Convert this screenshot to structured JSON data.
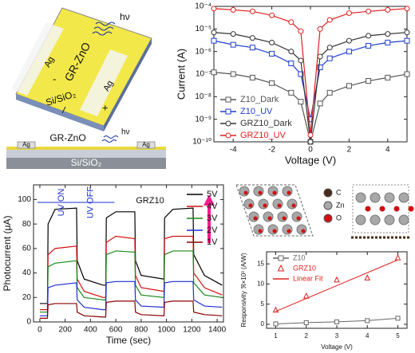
{
  "schematic": {
    "top_view": {
      "electrode_left": "Ag",
      "electrode_right": "Ag",
      "film": "GR-ZnO",
      "light": "hν",
      "minus": "-",
      "plus": "+",
      "substrate": "Si/SiO₂"
    },
    "cross_section": {
      "electrode_left": "Ag",
      "film": "GR-ZnO",
      "light": "hν",
      "electrode_right": "Ag",
      "substrate": "Si/SiO₂"
    }
  },
  "structure_legend": [
    "C",
    "Zn",
    "O"
  ],
  "chart_data": [
    {
      "type": "line",
      "log_y": true,
      "x_label": "Voltage (V)",
      "y_label": "Current (A)",
      "legend": "lower left",
      "x": [
        -5,
        -4,
        -3,
        -2,
        -1,
        -0.5,
        0,
        0.5,
        1,
        2,
        3,
        4,
        5
      ],
      "xlim": [
        -5,
        5
      ],
      "xticks": [
        -4,
        -2,
        0,
        2,
        4
      ],
      "ylim": [
        1e-10,
        0.0001
      ],
      "yticks": [
        {
          "value": 1e-10,
          "label": "10⁻¹⁰"
        },
        {
          "value": 1e-09,
          "label": "10⁻⁹"
        },
        {
          "value": 1e-08,
          "label": "10⁻⁸"
        },
        {
          "value": 1e-07,
          "label": "10⁻⁷"
        },
        {
          "value": 1e-06,
          "label": "10⁻⁶"
        },
        {
          "value": 1e-05,
          "label": "10⁻⁵"
        },
        {
          "value": 0.0001,
          "label": "10⁻⁴"
        }
      ],
      "series": [
        {
          "name": "Z10_Dark",
          "color": "#555555",
          "marker": "square",
          "mode": "lines+markers",
          "values": [
            1.2e-07,
            1e-07,
            7e-08,
            4e-08,
            1.5e-08,
            6e-09,
            1e-10,
            5e-09,
            1.5e-08,
            3e-08,
            5e-08,
            7e-08,
            1e-07
          ]
        },
        {
          "name": "Z10_UV",
          "color": "#1f3fd0",
          "marker": "square",
          "mode": "lines+markers",
          "values": [
            3e-06,
            2e-06,
            1.5e-06,
            8e-07,
            3e-07,
            1e-07,
            1e-09,
            2e-07,
            5e-07,
            1e-06,
            1.8e-06,
            2.5e-06,
            3e-06
          ]
        },
        {
          "name": "GRZ10_Dark",
          "color": "#333333",
          "marker": "circle",
          "mode": "lines+markers",
          "values": [
            7e-06,
            6e-06,
            4e-06,
            2.5e-06,
            1e-06,
            4e-07,
            1e-10,
            6e-07,
            1.5e-06,
            3e-06,
            5e-06,
            6e-06,
            7e-06
          ]
        },
        {
          "name": "GRZ10_UV",
          "color": "#e02020",
          "marker": "circle",
          "mode": "lines+markers",
          "values": [
            8e-05,
            7e-05,
            6e-05,
            4e-05,
            2e-05,
            8e-06,
            2e-10,
            1e-05,
            2.5e-05,
            5e-05,
            6e-05,
            7e-05,
            8e-05
          ]
        }
      ]
    },
    {
      "type": "line",
      "x_label": "Time (sec)",
      "y_label": "Photocurrent (μA)",
      "legend": "upper right",
      "annotations": [
        "UV ON",
        "UV OFF",
        "GRZ10"
      ],
      "x": [
        0,
        60,
        65,
        120,
        290,
        295,
        350,
        500,
        520,
        525,
        600,
        750,
        755,
        800,
        980,
        985,
        1050,
        1210,
        1215,
        1300,
        1440
      ],
      "xlim": [
        -50,
        1450
      ],
      "xticks": [
        0,
        200,
        400,
        600,
        800,
        1000,
        1200,
        1400
      ],
      "ylim": [
        0,
        112
      ],
      "yticks": [
        0,
        20,
        40,
        60,
        80,
        100
      ],
      "series": [
        {
          "name": "5V",
          "color": "#000000",
          "mode": "lines",
          "values": [
            15,
            15,
            80,
            92,
            93,
            50,
            35,
            30,
            30,
            85,
            90,
            90,
            50,
            38,
            35,
            85,
            92,
            93,
            55,
            38,
            30
          ]
        },
        {
          "name": "4V",
          "color": "#d01010",
          "mode": "lines",
          "values": [
            10,
            10,
            55,
            60,
            62,
            35,
            25,
            20,
            20,
            65,
            70,
            68,
            38,
            28,
            25,
            68,
            70,
            70,
            40,
            28,
            22
          ]
        },
        {
          "name": "3V",
          "color": "#1a8a1a",
          "mode": "lines",
          "values": [
            8,
            8,
            45,
            48,
            50,
            28,
            20,
            18,
            18,
            55,
            58,
            57,
            30,
            22,
            20,
            55,
            58,
            58,
            32,
            22,
            20
          ]
        },
        {
          "name": "2V",
          "color": "#1e2fd0",
          "mode": "lines",
          "values": [
            5,
            5,
            28,
            30,
            32,
            18,
            12,
            10,
            10,
            32,
            33,
            33,
            18,
            13,
            12,
            32,
            33,
            33,
            18,
            13,
            12
          ]
        },
        {
          "name": "1V",
          "color": "#8b0000",
          "mode": "lines",
          "values": [
            3,
            3,
            14,
            15,
            15,
            8,
            5,
            4,
            4,
            16,
            17,
            17,
            8,
            6,
            5,
            16,
            17,
            17,
            8,
            6,
            5
          ]
        }
      ]
    },
    {
      "type": "scatter",
      "x_label": "Voltage (V)",
      "y_label": "Responsivity ℜ×10³ (A/W)",
      "legend": "upper left",
      "x": [
        1,
        2,
        3,
        4,
        5
      ],
      "xlim": [
        0.7,
        5.3
      ],
      "xticks": [
        1,
        2,
        3,
        4,
        5
      ],
      "ylim": [
        -1,
        18
      ],
      "yticks": [
        0,
        5,
        10,
        15
      ],
      "series": [
        {
          "name": "Z10",
          "color": "#666666",
          "marker": "square",
          "mode": "lines+markers",
          "values": [
            0.1,
            0.4,
            0.6,
            0.9,
            1.5
          ]
        },
        {
          "name": "GRZ10",
          "color": "#e02020",
          "marker": "triangle",
          "mode": "markers",
          "values": [
            3.5,
            7,
            11,
            11.5,
            16.5
          ]
        },
        {
          "name": "Linear Fit",
          "color": "#e02020",
          "mode": "lines",
          "values": [
            3.2,
            6.4,
            9.6,
            12.8,
            16
          ]
        }
      ]
    }
  ]
}
